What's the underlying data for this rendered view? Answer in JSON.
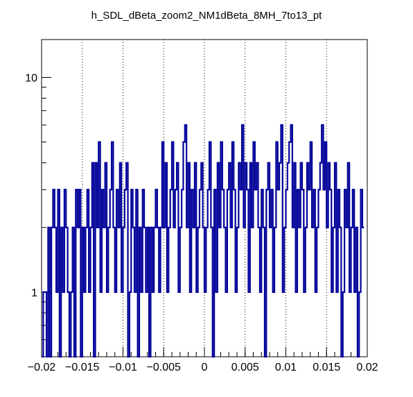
{
  "chart_data": {
    "type": "step",
    "title": "h_SDL_dBeta_zoom2_NM1dBeta_8MH_7to13_pt",
    "xlabel": "",
    "ylabel": "",
    "x_range": [
      -0.02,
      0.02
    ],
    "y_range": [
      0.5,
      15
    ],
    "y_scale": "log",
    "x_ticks": [
      -0.02,
      -0.015,
      -0.01,
      -0.005,
      0,
      0.005,
      0.01,
      0.015,
      0.02
    ],
    "x_tick_labels": [
      "−0.02",
      "−0.015",
      "−0.01",
      "−0.005",
      "0",
      "0.005",
      "0.01",
      "0.015",
      "0.02"
    ],
    "y_ticks": [
      1,
      10
    ],
    "y_tick_labels": [
      "1",
      "10"
    ],
    "grid_x": true,
    "grid_y": false,
    "line_color": "#000099",
    "bin_width": 0.0002,
    "x_start": -0.02,
    "values": [
      0,
      1,
      1,
      0,
      2,
      0,
      2,
      3,
      2,
      1,
      3,
      0,
      2,
      1,
      3,
      2,
      1,
      0,
      1,
      2,
      0,
      3,
      2,
      3,
      0,
      2,
      1,
      2,
      3,
      1,
      2,
      4,
      0,
      4,
      2,
      5,
      1,
      3,
      2,
      4,
      1,
      2,
      3,
      5,
      2,
      1,
      3,
      2,
      4,
      1,
      2,
      3,
      4,
      0,
      1,
      3,
      2,
      1,
      3,
      0,
      2,
      1,
      3,
      2,
      1,
      2,
      0,
      2,
      1,
      2,
      3,
      2,
      1,
      2,
      5,
      2,
      4,
      1,
      2,
      3,
      5,
      2,
      3,
      4,
      1,
      2,
      3,
      5,
      6,
      2,
      4,
      1,
      3,
      2,
      4,
      1,
      2,
      3,
      4,
      2,
      1,
      2,
      3,
      5,
      2,
      0,
      3,
      1,
      4,
      2,
      5,
      3,
      2,
      1,
      3,
      4,
      2,
      5,
      3,
      1,
      2,
      4,
      3,
      6,
      2,
      4,
      3,
      1,
      4,
      2,
      5,
      3,
      4,
      2,
      1,
      3,
      2,
      0,
      3,
      4,
      2,
      3,
      1,
      2,
      5,
      3,
      4,
      6,
      1,
      2,
      3,
      4,
      5,
      6,
      2,
      4,
      1,
      3,
      2,
      4,
      3,
      1,
      2,
      4,
      3,
      5,
      2,
      3,
      1,
      2,
      3,
      4,
      6,
      3,
      5,
      2,
      4,
      3,
      1,
      2,
      4,
      1,
      3,
      2,
      0,
      1,
      3,
      2,
      4,
      1,
      2,
      3,
      1,
      2,
      0,
      1,
      3,
      2
    ]
  }
}
